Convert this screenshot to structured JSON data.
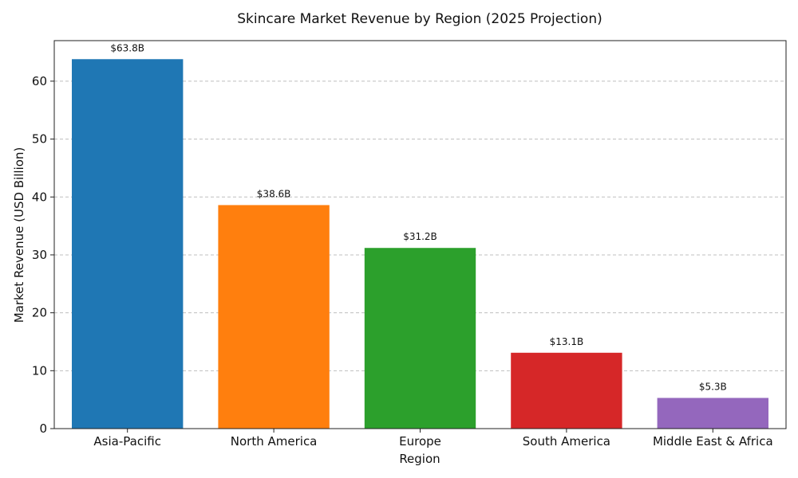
{
  "chart_data": {
    "type": "bar",
    "title": "Skincare Market Revenue by Region (2025 Projection)",
    "xlabel": "Region",
    "ylabel": "Market Revenue (USD Billion)",
    "categories": [
      "Asia-Pacific",
      "North America",
      "Europe",
      "South America",
      "Middle East & Africa"
    ],
    "values": [
      63.8,
      38.6,
      31.2,
      13.1,
      5.3
    ],
    "data_labels": [
      "$63.8B",
      "$38.6B",
      "$31.2B",
      "$13.1B",
      "$5.3B"
    ],
    "colors": [
      "#1f77b4",
      "#ff7f0e",
      "#2ca02c",
      "#d62728",
      "#9467bd"
    ],
    "ylim": [
      0,
      67
    ],
    "yticks": [
      0,
      10,
      20,
      30,
      40,
      50,
      60
    ],
    "grid": "y-dashed",
    "legend": "none"
  }
}
